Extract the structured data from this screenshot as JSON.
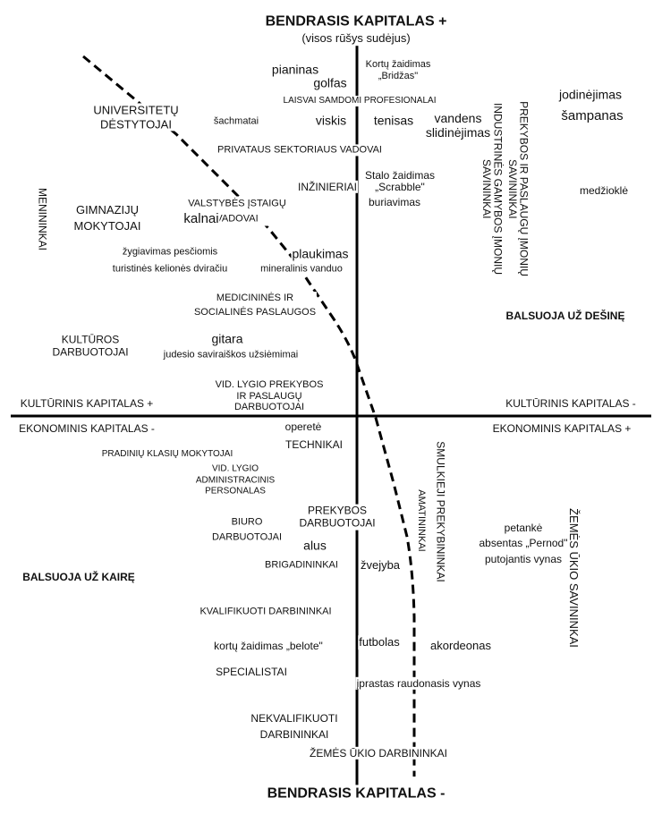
{
  "axes": {
    "top": "BENDRASIS KAPITALAS +",
    "top_sub": "(visos rūšys sudėjus)",
    "bottom": "BENDRASIS KAPITALAS -",
    "left_upper": "KULTŪRINIS KAPITALAS +",
    "left_lower": "EKONOMINIS KAPITALAS -",
    "right_upper": "KULTŪRINIS KAPITALAS -",
    "right_lower": "EKONOMINIS KAPITALAS +"
  },
  "votes": {
    "right": "BALSUOJA UŽ DEŠINĘ",
    "left": "BALSUOJA UŽ KAIRĘ"
  },
  "professions": {
    "universitetu": "UNIVERSITETŲ\nDĖSTYTOJAI",
    "laisvai": "LAISVAI SAMDOMI PROFESIONALAI",
    "privataus": "PRIVATAUS SEKTORIAUS VADOVAI",
    "inzinieriai": "INŽINIERIAI",
    "valstybes": "VALSTYBĖS ĮSTAIGŲ\nVADOVAI",
    "gimnaziju": "GIMNAZIJŲ\nMOKYTOJAI",
    "menininkai": "MENININKAI",
    "prekybos_savininkai": "PREKYBOS IR PASLAUGŲ ĮMONIŲ\nSAVININKAI",
    "industrines_savininkai": "INDUSTRINĖS GAMYBOS ĮMONIŲ\nSAVININKAI",
    "medicinines": "MEDICININĖS IR\nSOCIALINĖS PASLAUGOS",
    "kulturos": "KULTŪROS\nDARBUOTOJAI",
    "vid_prekybos": "VID. LYGIO PREKYBOS\nIR PASLAUGŲ\nDARBUOTOJAI",
    "technikai": "TECHNIKAI",
    "pradiniu": "PRADINIŲ KLASIŲ MOKYTOJAI",
    "vid_admin": "VID. LYGIO\nADMINISTRACINIS\nPERSONALAS",
    "prekybos_darbuotojai": "PREKYBOS\nDARBUOTOJAI",
    "biuro": "BIURO\nDARBUOTOJAI",
    "brigadininkai": "BRIGADININKAI",
    "smulkieji": "SMULKIEJI PREKYBININKAI",
    "amatininkai": "AMATININKAI",
    "zemes_savininkai": "ŽEMĖS ŪKIO SAVININKAI",
    "kvalifikuoti": "KVALIFIKUOTI DARBININKAI",
    "specialistai": "SPECIALISTAI",
    "nekvalifikuoti": "NEKVALIFIKUOTI\nDARBININKAI",
    "zemes_darbininkai": "ŽEMĖS ŪKIO DARBININKAI"
  },
  "tastes": {
    "pianinas": "pianinas",
    "bridzas": "Kortų žaidimas\n„Bridžas\"",
    "golfas": "golfas",
    "sachmatai": "šachmatai",
    "viskis": "viskis",
    "tenisas": "tenisas",
    "vandens": "vandens\nslidinėjimas",
    "jodinejimas": "jodinėjimas",
    "sampanas": "šampanas",
    "scrabble": "Stalo žaidimas\n„Scrabble\"",
    "buriavimas": "buriavimas",
    "kalnai": "kalnai",
    "medziokle": "medžioklė",
    "zygiavimas": "žygiavimas pesčiomis",
    "dviraciu": "turistinės kelionės dviračiu",
    "plaukimas": "plaukimas",
    "mineralinis": "mineralinis vanduo",
    "gitara": "gitara",
    "judesio": "judesio saviraiškos užsiėmimai",
    "operete": "operetė",
    "alus": "alus",
    "zvejyba": "žvejyba",
    "petanke": "petankė\nabsentas „Pernod\"\nputojantis vynas",
    "belote": "kortų žaidimas „belote\"",
    "futbolas": "futbolas",
    "akordeonas": "akordeonas",
    "vynas": "įprastas raudonasis vynas"
  }
}
